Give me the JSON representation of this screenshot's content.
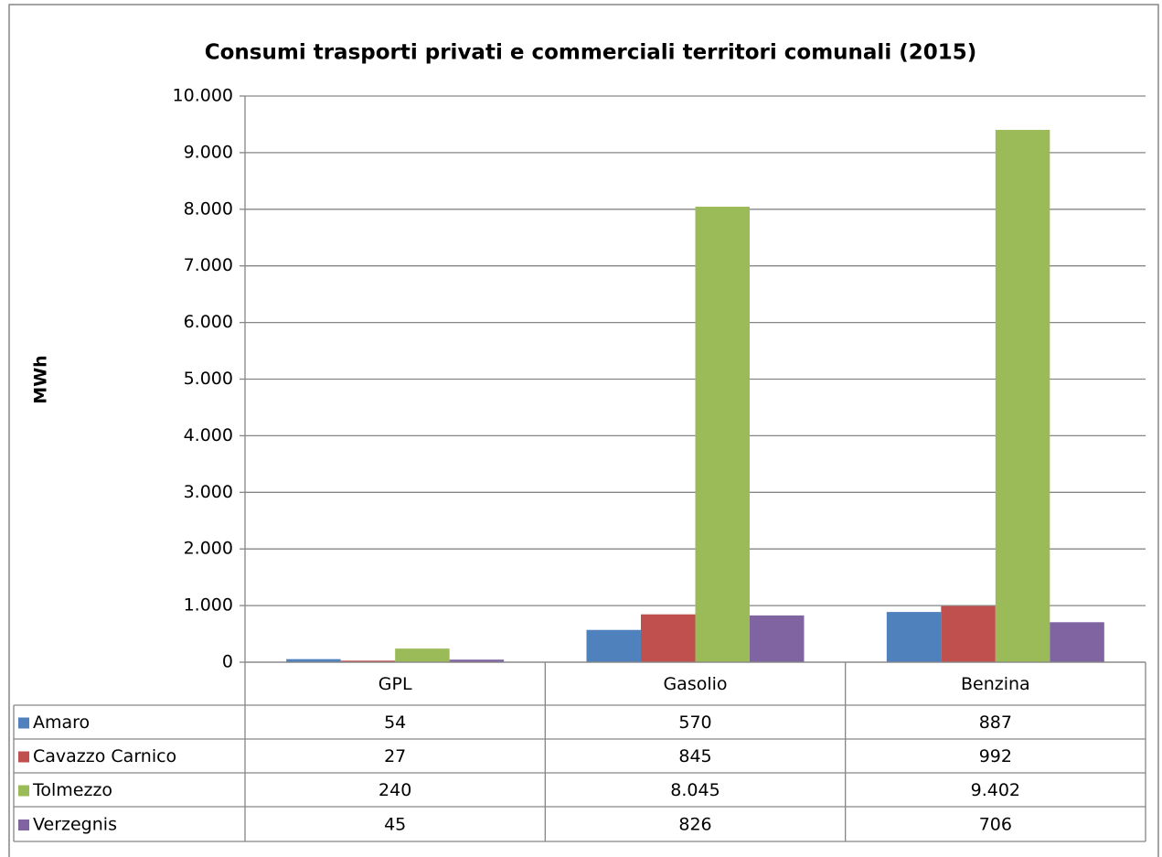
{
  "chart_data": {
    "type": "bar",
    "title": "Consumi trasporti privati e commerciali territori comunali (2015)",
    "y_label": "MWh",
    "categories": [
      "GPL",
      "Gasolio",
      "Benzina"
    ],
    "series": [
      {
        "name": "Amaro",
        "color": "#4f81bd",
        "values": [
          54,
          570,
          887
        ],
        "value_labels": [
          "54",
          "570",
          "887"
        ]
      },
      {
        "name": "Cavazzo Carnico",
        "color": "#c0504d",
        "values": [
          27,
          845,
          992
        ],
        "value_labels": [
          "27",
          "845",
          "992"
        ]
      },
      {
        "name": "Tolmezzo",
        "color": "#9bbb59",
        "values": [
          240,
          8045,
          9402
        ],
        "value_labels": [
          "240",
          "8.045",
          "9.402"
        ]
      },
      {
        "name": "Verzegnis",
        "color": "#8064a2",
        "values": [
          45,
          826,
          706
        ],
        "value_labels": [
          "45",
          "826",
          "706"
        ]
      }
    ],
    "ylim": [
      0,
      10000
    ],
    "yticks": [
      0,
      {
        "value": 1000,
        "label": "1.000"
      },
      {
        "value": 2000,
        "label": "2.000"
      },
      {
        "value": 3000,
        "label": "3.000"
      },
      {
        "value": 4000,
        "label": "4.000"
      },
      {
        "value": 5000,
        "label": "5.000"
      },
      {
        "value": 6000,
        "label": "6.000"
      },
      {
        "value": 7000,
        "label": "7.000"
      },
      {
        "value": 8000,
        "label": "8.000"
      },
      {
        "value": 9000,
        "label": "9.000"
      },
      {
        "value": 10000,
        "label": "10.000"
      }
    ],
    "grid": true
  }
}
